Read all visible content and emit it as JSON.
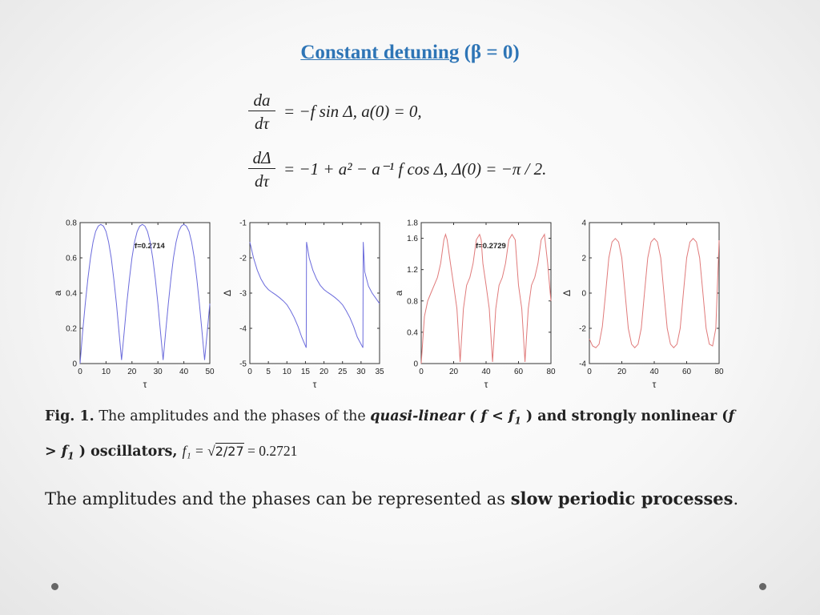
{
  "title": {
    "main": "Constant detuning",
    "param": "(β = 0)"
  },
  "equations": [
    {
      "numerator": "da",
      "denominator": "dτ",
      "rhs": "= −f sin Δ,  a(0) = 0,"
    },
    {
      "numerator": "dΔ",
      "denominator": "dτ",
      "rhs": "= −1 + a² − a⁻¹ f cos Δ,  Δ(0) = −π / 2."
    }
  ],
  "chart_data": [
    {
      "type": "line",
      "xlabel": "τ",
      "ylabel": "a",
      "xlim": [
        0,
        50
      ],
      "ylim": [
        0,
        0.8
      ],
      "xticks": [
        0,
        10,
        20,
        30,
        40,
        50
      ],
      "yticks": [
        0,
        0.2,
        0.4,
        0.6,
        0.8
      ],
      "annotation": "f=0.2714",
      "color": "#6b6bdc",
      "series": [
        {
          "x": [
            0,
            1,
            2,
            3,
            4,
            5,
            6,
            7,
            8,
            9,
            10,
            11,
            12,
            13,
            14,
            15,
            16,
            17,
            18,
            19,
            20,
            21,
            22,
            23,
            24,
            25,
            26,
            27,
            28,
            29,
            30,
            31,
            32,
            33,
            34,
            35,
            36,
            37,
            38,
            39,
            40,
            41,
            42,
            43,
            44,
            45,
            46,
            47,
            48,
            49,
            50
          ],
          "y": [
            0,
            0.18,
            0.34,
            0.48,
            0.6,
            0.69,
            0.75,
            0.78,
            0.79,
            0.78,
            0.75,
            0.69,
            0.6,
            0.48,
            0.34,
            0.18,
            0.02,
            0.18,
            0.34,
            0.48,
            0.6,
            0.69,
            0.75,
            0.78,
            0.79,
            0.78,
            0.75,
            0.69,
            0.6,
            0.48,
            0.34,
            0.18,
            0.02,
            0.18,
            0.34,
            0.48,
            0.6,
            0.69,
            0.75,
            0.78,
            0.79,
            0.78,
            0.75,
            0.69,
            0.6,
            0.48,
            0.34,
            0.18,
            0.02,
            0.18,
            0.34
          ]
        }
      ]
    },
    {
      "type": "line",
      "xlabel": "τ",
      "ylabel": "Δ",
      "xlim": [
        0,
        35
      ],
      "ylim": [
        -5,
        -1
      ],
      "xticks": [
        0,
        5,
        10,
        15,
        20,
        25,
        30,
        35
      ],
      "yticks": [
        -5,
        -4,
        -3,
        -2,
        -1
      ],
      "color": "#6b6bdc",
      "series": [
        {
          "x": [
            0,
            1,
            2,
            3,
            4,
            5,
            6,
            7,
            8,
            9,
            10,
            11,
            12,
            13,
            14,
            15.2,
            15.3,
            16,
            17,
            18,
            19,
            20,
            21,
            22,
            23,
            24,
            25,
            26,
            27,
            28,
            29,
            30.5,
            30.6,
            31,
            32,
            33,
            34,
            35
          ],
          "y": [
            -1.55,
            -2.0,
            -2.35,
            -2.6,
            -2.78,
            -2.9,
            -2.98,
            -3.05,
            -3.13,
            -3.22,
            -3.33,
            -3.5,
            -3.7,
            -3.95,
            -4.25,
            -4.55,
            -1.55,
            -2.0,
            -2.35,
            -2.6,
            -2.78,
            -2.9,
            -2.98,
            -3.05,
            -3.13,
            -3.22,
            -3.33,
            -3.5,
            -3.7,
            -3.95,
            -4.25,
            -4.55,
            -1.55,
            -2.4,
            -2.8,
            -3.0,
            -3.15,
            -3.3
          ]
        }
      ]
    },
    {
      "type": "line",
      "xlabel": "τ",
      "ylabel": "a",
      "xlim": [
        0,
        80
      ],
      "ylim": [
        0,
        1.8
      ],
      "xticks": [
        0,
        20,
        40,
        60,
        80
      ],
      "yticks": [
        0,
        0.4,
        0.8,
        1.2,
        1.6,
        1.8
      ],
      "annotation": "f=0.2729",
      "color": "#e07a7a",
      "series": [
        {
          "x": [
            0,
            2,
            4,
            6,
            8,
            10,
            12,
            14,
            15,
            16,
            18,
            20,
            22,
            24,
            26,
            28,
            30,
            32,
            34,
            36,
            37,
            38,
            40,
            42,
            44,
            46,
            48,
            50,
            52,
            54,
            56,
            58,
            59,
            60,
            62,
            64,
            66,
            68,
            70,
            72,
            74,
            76,
            78,
            80
          ],
          "y": [
            0,
            0.6,
            0.8,
            0.9,
            1.0,
            1.1,
            1.28,
            1.58,
            1.65,
            1.58,
            1.28,
            1.0,
            0.7,
            0.02,
            0.7,
            1.0,
            1.1,
            1.28,
            1.58,
            1.65,
            1.58,
            1.28,
            1.0,
            0.7,
            0.02,
            0.7,
            1.0,
            1.1,
            1.28,
            1.58,
            1.65,
            1.58,
            1.28,
            1.0,
            0.7,
            0.02,
            0.7,
            1.0,
            1.1,
            1.28,
            1.58,
            1.65,
            1.28,
            0.8
          ]
        }
      ]
    },
    {
      "type": "line",
      "xlabel": "τ",
      "ylabel": "Δ",
      "xlim": [
        0,
        80
      ],
      "ylim": [
        -4,
        4
      ],
      "xticks": [
        0,
        20,
        40,
        60,
        80
      ],
      "yticks": [
        -4,
        -2,
        0,
        2,
        4
      ],
      "color": "#e07a7a",
      "series": [
        {
          "x": [
            0,
            2,
            4,
            6,
            8,
            10,
            12,
            14,
            16,
            18,
            20,
            22,
            24,
            26,
            28,
            30,
            32,
            34,
            36,
            38,
            40,
            42,
            44,
            46,
            48,
            50,
            52,
            54,
            56,
            58,
            60,
            62,
            64,
            66,
            68,
            70,
            72,
            74,
            76,
            78,
            80
          ],
          "y": [
            -2.6,
            -3.0,
            -3.1,
            -2.9,
            -1.9,
            0,
            2.0,
            2.9,
            3.1,
            2.9,
            2.0,
            0,
            -2.0,
            -2.9,
            -3.1,
            -2.9,
            -2.0,
            0,
            2.0,
            2.9,
            3.1,
            2.9,
            2.0,
            0,
            -2.0,
            -2.9,
            -3.1,
            -2.9,
            -2.0,
            0,
            2.0,
            2.9,
            3.1,
            2.9,
            2.0,
            0,
            -2.0,
            -2.9,
            -3.0,
            -2.0,
            3.0
          ]
        }
      ]
    }
  ],
  "caption": {
    "fig_label": "Fig. 1.",
    "text1": " The amplitudes and the phases of the ",
    "quasi": "quasi-linear ( f < f",
    "sub1": "1",
    "text2": " ) and strongly nonlinear (",
    "f_italic": "f",
    "line2_a": "> f",
    "sub2": "1",
    "line2_b": " ) oscillators, ",
    "f1_eq": "f₁ = ",
    "sqrt_val": "2/27",
    "eq_end": " = 0.2721"
  },
  "bottom": {
    "text": "The amplitudes and the phases can be represented as ",
    "bold": "slow periodic processes",
    "end": "."
  }
}
